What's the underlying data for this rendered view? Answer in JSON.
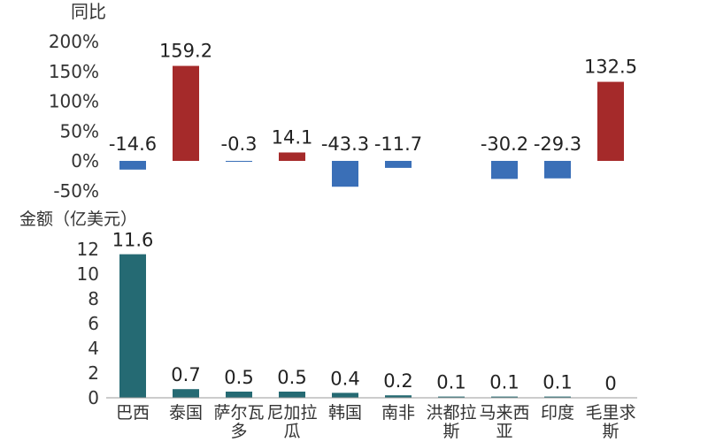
{
  "chart_data": [
    {
      "type": "bar",
      "ylabel": "同比",
      "categories": [
        "巴西",
        "泰国",
        "萨尔瓦多",
        "尼加拉瓜",
        "韩国",
        "南非",
        "洪都拉斯",
        "马来西亚",
        "印度",
        "毛里求斯"
      ],
      "values": [
        -14.6,
        159.2,
        -0.3,
        14.1,
        -43.3,
        -11.7,
        null,
        -30.2,
        -29.3,
        132.5
      ],
      "value_labels": [
        "-14.6",
        "159.2",
        "-0.3",
        "14.1",
        "-43.3",
        "-11.7",
        "",
        "-30.2",
        "-29.3",
        "132.5"
      ],
      "ylim": [
        -50,
        200
      ],
      "yticks": [
        -50,
        0,
        50,
        100,
        150,
        200
      ],
      "ytick_labels": [
        "-50%",
        "0%",
        "50%",
        "100%",
        "150%",
        "200%"
      ],
      "colors": {
        "positive": "#a52a2a",
        "negative": "#3a6fb7"
      }
    },
    {
      "type": "bar",
      "ylabel": "金额（亿美元）",
      "categories": [
        "巴西",
        "泰国",
        "萨尔瓦多",
        "尼加拉瓜",
        "韩国",
        "南非",
        "洪都拉斯",
        "马来西亚",
        "印度",
        "毛里求斯"
      ],
      "category_labels": [
        [
          "巴西"
        ],
        [
          "泰国"
        ],
        [
          "萨尔瓦",
          "多"
        ],
        [
          "尼加拉",
          "瓜"
        ],
        [
          "韩国"
        ],
        [
          "南非"
        ],
        [
          "洪都拉",
          "斯"
        ],
        [
          "马来西",
          "亚"
        ],
        [
          "印度"
        ],
        [
          "毛里求",
          "斯"
        ]
      ],
      "values": [
        11.6,
        0.7,
        0.5,
        0.5,
        0.4,
        0.2,
        0.1,
        0.1,
        0.1,
        0
      ],
      "value_labels": [
        "11.6",
        "0.7",
        "0.5",
        "0.5",
        "0.4",
        "0.2",
        "0.1",
        "0.1",
        "0.1",
        "0"
      ],
      "ylim": [
        0,
        12
      ],
      "yticks": [
        0,
        2,
        4,
        6,
        8,
        10,
        12
      ],
      "ytick_labels": [
        "0",
        "2",
        "4",
        "6",
        "8",
        "10",
        "12"
      ],
      "colors": {
        "bar": "#256a73"
      }
    }
  ]
}
